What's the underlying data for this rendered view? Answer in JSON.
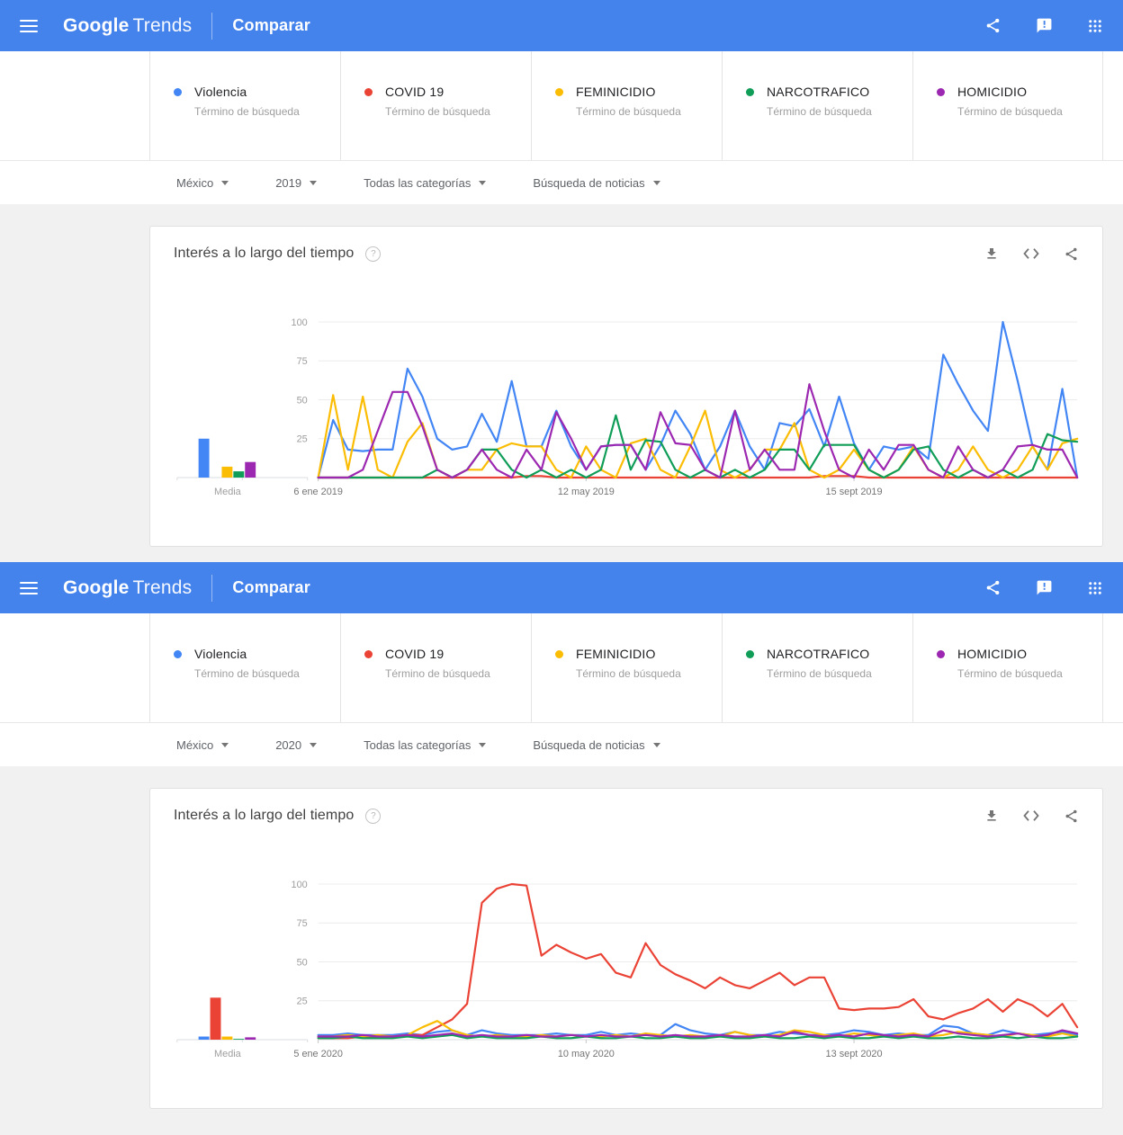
{
  "app": {
    "logo_google": "Google",
    "logo_trends": "Trends",
    "nav_title": "Comparar",
    "header_color": "#4583ec"
  },
  "icons": {
    "menu": "hamburger",
    "share_header": "share-nodes",
    "feedback": "speech-bubble-exclamation",
    "apps": "grid-3x3-dots",
    "help": "question-circle",
    "download": "download-arrow-tray",
    "embed": "angle-brackets",
    "share_chart": "share-nodes",
    "dropdown": "caret-down"
  },
  "panels": [
    {
      "terms": [
        {
          "label": "Violencia",
          "sublabel": "Término de búsqueda",
          "color": "#4285f4"
        },
        {
          "label": "COVID 19",
          "sublabel": "Término de búsqueda",
          "color": "#ea4335"
        },
        {
          "label": "FEMINICIDIO",
          "sublabel": "Término de búsqueda",
          "color": "#fbbc04"
        },
        {
          "label": "NARCOTRAFICO",
          "sublabel": "Término de búsqueda",
          "color": "#0f9d58"
        },
        {
          "label": "HOMICIDIO",
          "sublabel": "Término de búsqueda",
          "color": "#9c27b0"
        }
      ],
      "filters": [
        {
          "label": "México"
        },
        {
          "label": "2019"
        },
        {
          "label": "Todas las categorías"
        },
        {
          "label": "Búsqueda de noticias"
        }
      ]
    },
    {
      "terms": [
        {
          "label": "Violencia",
          "sublabel": "Término de búsqueda",
          "color": "#4285f4"
        },
        {
          "label": "COVID 19",
          "sublabel": "Término de búsqueda",
          "color": "#ea4335"
        },
        {
          "label": "FEMINICIDIO",
          "sublabel": "Término de búsqueda",
          "color": "#fbbc04"
        },
        {
          "label": "NARCOTRAFICO",
          "sublabel": "Término de búsqueda",
          "color": "#0f9d58"
        },
        {
          "label": "HOMICIDIO",
          "sublabel": "Término de búsqueda",
          "color": "#9c27b0"
        }
      ],
      "filters": [
        {
          "label": "México"
        },
        {
          "label": "2020"
        },
        {
          "label": "Todas las categorías"
        },
        {
          "label": "Búsqueda de noticias"
        }
      ]
    }
  ],
  "chart_data": [
    {
      "type": "line",
      "title": "Interés a lo largo del tiempo",
      "region": "México",
      "year": "2019",
      "category": "Todas las categorías",
      "search_type": "Búsqueda de noticias",
      "ylim": [
        0,
        100
      ],
      "yticks": [
        25,
        50,
        75,
        100
      ],
      "x_unit": "weeks",
      "x_tick_labels": [
        "6 ene 2019",
        "12 may 2019",
        "15 sept 2019"
      ],
      "x_tick_indices": [
        0,
        18,
        36
      ],
      "grid": true,
      "legend_position": "none",
      "series": [
        {
          "name": "Violencia",
          "color": "#4285f4",
          "values": [
            0,
            37,
            18,
            17,
            18,
            18,
            70,
            52,
            25,
            18,
            20,
            41,
            23,
            62,
            20,
            20,
            43,
            20,
            5,
            20,
            21,
            21,
            5,
            21,
            43,
            28,
            5,
            20,
            43,
            20,
            5,
            35,
            33,
            44,
            20,
            52,
            22,
            5,
            20,
            18,
            20,
            12,
            79,
            60,
            43,
            30,
            100,
            62,
            20,
            5,
            57,
            0
          ]
        },
        {
          "name": "COVID 19",
          "color": "#ea4335",
          "values": [
            0,
            0,
            0,
            0,
            0,
            0,
            0,
            0,
            0,
            0,
            0,
            0,
            0,
            0,
            1,
            1,
            0,
            0,
            0,
            0,
            0,
            0,
            0,
            0,
            0,
            0,
            0,
            0,
            0,
            0,
            0,
            0,
            0,
            0,
            1,
            1,
            1,
            0,
            0,
            0,
            0,
            0,
            0,
            0,
            0,
            0,
            0,
            0,
            0,
            0,
            0,
            0
          ]
        },
        {
          "name": "FEMINICIDIO",
          "color": "#fbbc04",
          "values": [
            0,
            53,
            5,
            52,
            5,
            0,
            23,
            35,
            5,
            0,
            5,
            5,
            18,
            22,
            20,
            20,
            5,
            0,
            20,
            5,
            0,
            22,
            25,
            5,
            0,
            20,
            43,
            5,
            0,
            5,
            18,
            18,
            35,
            5,
            0,
            5,
            18,
            5,
            0,
            5,
            20,
            5,
            0,
            5,
            20,
            5,
            0,
            5,
            20,
            5,
            22,
            25
          ]
        },
        {
          "name": "NARCOTRAFICO",
          "color": "#0f9d58",
          "values": [
            0,
            0,
            0,
            0,
            0,
            0,
            0,
            0,
            5,
            0,
            5,
            18,
            18,
            5,
            0,
            5,
            0,
            5,
            0,
            5,
            40,
            5,
            24,
            23,
            5,
            0,
            5,
            0,
            5,
            0,
            5,
            18,
            18,
            5,
            21,
            21,
            21,
            5,
            0,
            5,
            18,
            20,
            5,
            0,
            5,
            0,
            5,
            0,
            5,
            28,
            24,
            23
          ]
        },
        {
          "name": "HOMICIDIO",
          "color": "#9c27b0",
          "values": [
            0,
            0,
            0,
            5,
            30,
            55,
            55,
            33,
            5,
            0,
            5,
            18,
            5,
            0,
            18,
            5,
            42,
            25,
            5,
            20,
            21,
            21,
            5,
            42,
            22,
            21,
            5,
            0,
            43,
            5,
            18,
            5,
            5,
            60,
            30,
            5,
            0,
            18,
            5,
            21,
            21,
            5,
            0,
            20,
            5,
            0,
            5,
            20,
            21,
            18,
            18,
            0
          ]
        }
      ],
      "media": {
        "label": "Media",
        "type": "bar",
        "values": [
          25,
          0,
          7,
          4,
          10
        ]
      }
    },
    {
      "type": "line",
      "title": "Interés a lo largo del tiempo",
      "region": "México",
      "year": "2020",
      "category": "Todas las categorías",
      "search_type": "Búsqueda de noticias",
      "ylim": [
        0,
        100
      ],
      "yticks": [
        25,
        50,
        75,
        100
      ],
      "x_unit": "weeks",
      "x_tick_labels": [
        "5 ene 2020",
        "10 may 2020",
        "13 sept 2020"
      ],
      "x_tick_indices": [
        0,
        18,
        36
      ],
      "grid": true,
      "legend_position": "none",
      "series": [
        {
          "name": "Violencia",
          "color": "#4285f4",
          "values": [
            3,
            3,
            4,
            3,
            3,
            3,
            4,
            3,
            5,
            6,
            3,
            6,
            4,
            3,
            3,
            3,
            4,
            3,
            3,
            5,
            3,
            4,
            3,
            3,
            10,
            6,
            4,
            3,
            5,
            3,
            3,
            5,
            4,
            3,
            3,
            4,
            6,
            5,
            3,
            4,
            3,
            3,
            9,
            8,
            4,
            3,
            6,
            4,
            3,
            4,
            5,
            3
          ]
        },
        {
          "name": "COVID 19",
          "color": "#ea4335",
          "values": [
            1,
            1,
            1,
            2,
            2,
            2,
            3,
            3,
            8,
            13,
            23,
            88,
            97,
            100,
            99,
            54,
            61,
            56,
            52,
            55,
            43,
            40,
            62,
            48,
            42,
            38,
            33,
            40,
            35,
            33,
            38,
            43,
            35,
            40,
            40,
            20,
            19,
            20,
            20,
            21,
            26,
            15,
            13,
            17,
            20,
            26,
            18,
            26,
            22,
            15,
            23,
            8
          ]
        },
        {
          "name": "FEMINICIDIO",
          "color": "#fbbc04",
          "values": [
            2,
            2,
            3,
            2,
            3,
            2,
            3,
            8,
            12,
            6,
            3,
            2,
            3,
            2,
            2,
            3,
            2,
            3,
            2,
            2,
            3,
            2,
            4,
            3,
            2,
            3,
            2,
            2,
            5,
            3,
            2,
            3,
            6,
            5,
            3,
            2,
            4,
            3,
            2,
            3,
            4,
            2,
            3,
            5,
            4,
            3,
            2,
            4,
            3,
            2,
            4,
            2
          ]
        },
        {
          "name": "NARCOTRAFICO",
          "color": "#0f9d58",
          "values": [
            1,
            1,
            2,
            1,
            1,
            1,
            2,
            1,
            2,
            3,
            1,
            2,
            1,
            1,
            1,
            2,
            1,
            1,
            2,
            1,
            1,
            2,
            1,
            1,
            2,
            1,
            1,
            2,
            1,
            1,
            2,
            1,
            1,
            2,
            1,
            2,
            1,
            1,
            2,
            1,
            2,
            1,
            1,
            2,
            1,
            1,
            2,
            1,
            2,
            1,
            1,
            2
          ]
        },
        {
          "name": "HOMICIDIO",
          "color": "#9c27b0",
          "values": [
            2,
            2,
            2,
            3,
            2,
            2,
            3,
            2,
            3,
            4,
            2,
            3,
            2,
            2,
            3,
            2,
            2,
            3,
            2,
            3,
            2,
            2,
            3,
            2,
            3,
            2,
            2,
            3,
            2,
            2,
            3,
            2,
            5,
            3,
            2,
            3,
            2,
            4,
            3,
            2,
            3,
            2,
            6,
            4,
            3,
            2,
            3,
            4,
            2,
            3,
            6,
            4
          ]
        }
      ],
      "media": {
        "label": "Media",
        "type": "bar",
        "values": [
          2,
          27,
          2,
          0.5,
          1.5
        ]
      }
    }
  ]
}
